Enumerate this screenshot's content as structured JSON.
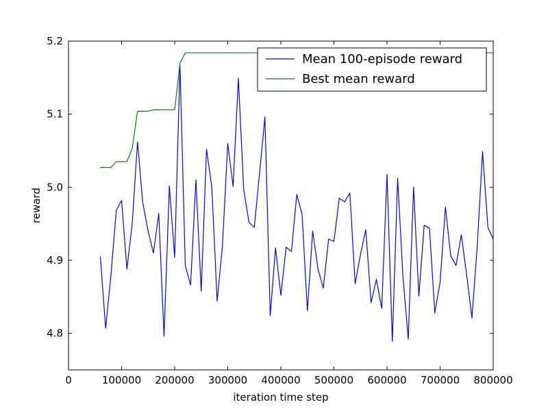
{
  "chart_data": {
    "type": "line",
    "title": "",
    "xlabel": "iteration time step",
    "ylabel": "reward",
    "xlim": [
      0,
      800000
    ],
    "ylim": [
      4.75,
      5.2
    ],
    "xticks": [
      0,
      100000,
      200000,
      300000,
      400000,
      500000,
      600000,
      700000,
      800000
    ],
    "xtick_labels": [
      "0",
      "100000",
      "200000",
      "300000",
      "400000",
      "500000",
      "600000",
      "700000",
      "800000"
    ],
    "yticks": [
      4.8,
      4.9,
      5.0,
      5.1,
      5.2
    ],
    "ytick_labels": [
      "4.8",
      "4.9",
      "5.0",
      "5.1",
      "5.2"
    ],
    "grid": false,
    "legend_position": "top-right",
    "series": [
      {
        "name": "Mean 100-episode reward",
        "color": "#0000ff",
        "x": [
          60000,
          70000,
          80000,
          90000,
          100000,
          110000,
          120000,
          130000,
          140000,
          150000,
          160000,
          170000,
          180000,
          190000,
          200000,
          210000,
          220000,
          230000,
          240000,
          250000,
          260000,
          270000,
          280000,
          290000,
          300000,
          310000,
          320000,
          330000,
          340000,
          350000,
          360000,
          370000,
          380000,
          390000,
          400000,
          410000,
          420000,
          430000,
          440000,
          450000,
          460000,
          470000,
          480000,
          490000,
          500000,
          510000,
          520000,
          530000,
          540000,
          550000,
          560000,
          570000,
          580000,
          590000,
          600000,
          610000,
          620000,
          630000,
          640000,
          650000,
          660000,
          670000,
          680000,
          690000,
          700000,
          710000,
          720000,
          730000,
          740000,
          750000,
          760000,
          770000,
          780000,
          790000,
          800000
        ],
        "y": [
          4.905,
          4.807,
          4.88,
          4.968,
          4.982,
          4.888,
          4.95,
          5.062,
          4.978,
          4.94,
          4.91,
          4.964,
          4.796,
          5.002,
          4.904,
          5.167,
          4.893,
          4.866,
          5.01,
          4.858,
          5.052,
          5.0,
          4.844,
          4.92,
          5.06,
          5.001,
          5.149,
          4.997,
          4.952,
          4.945,
          5.02,
          5.096,
          4.824,
          4.917,
          4.852,
          4.918,
          4.912,
          4.99,
          4.963,
          4.831,
          4.94,
          4.888,
          4.862,
          4.929,
          4.926,
          4.985,
          4.98,
          4.992,
          4.868,
          4.908,
          4.942,
          4.842,
          4.874,
          4.834,
          5.018,
          4.789,
          5.012,
          4.878,
          4.792,
          5.0,
          4.851,
          4.948,
          4.944,
          4.828,
          4.87,
          4.973,
          4.906,
          4.893,
          4.935,
          4.88,
          4.821,
          4.92,
          5.049,
          4.945,
          4.929
        ]
      },
      {
        "name": "Best mean reward",
        "color": "#008000",
        "x": [
          60000,
          80000,
          90000,
          100000,
          110000,
          120000,
          130000,
          150000,
          160000,
          200000,
          210000,
          220000,
          800000
        ],
        "y": [
          5.027,
          5.027,
          5.035,
          5.035,
          5.035,
          5.053,
          5.104,
          5.104,
          5.106,
          5.106,
          5.17,
          5.184,
          5.184
        ]
      }
    ]
  }
}
